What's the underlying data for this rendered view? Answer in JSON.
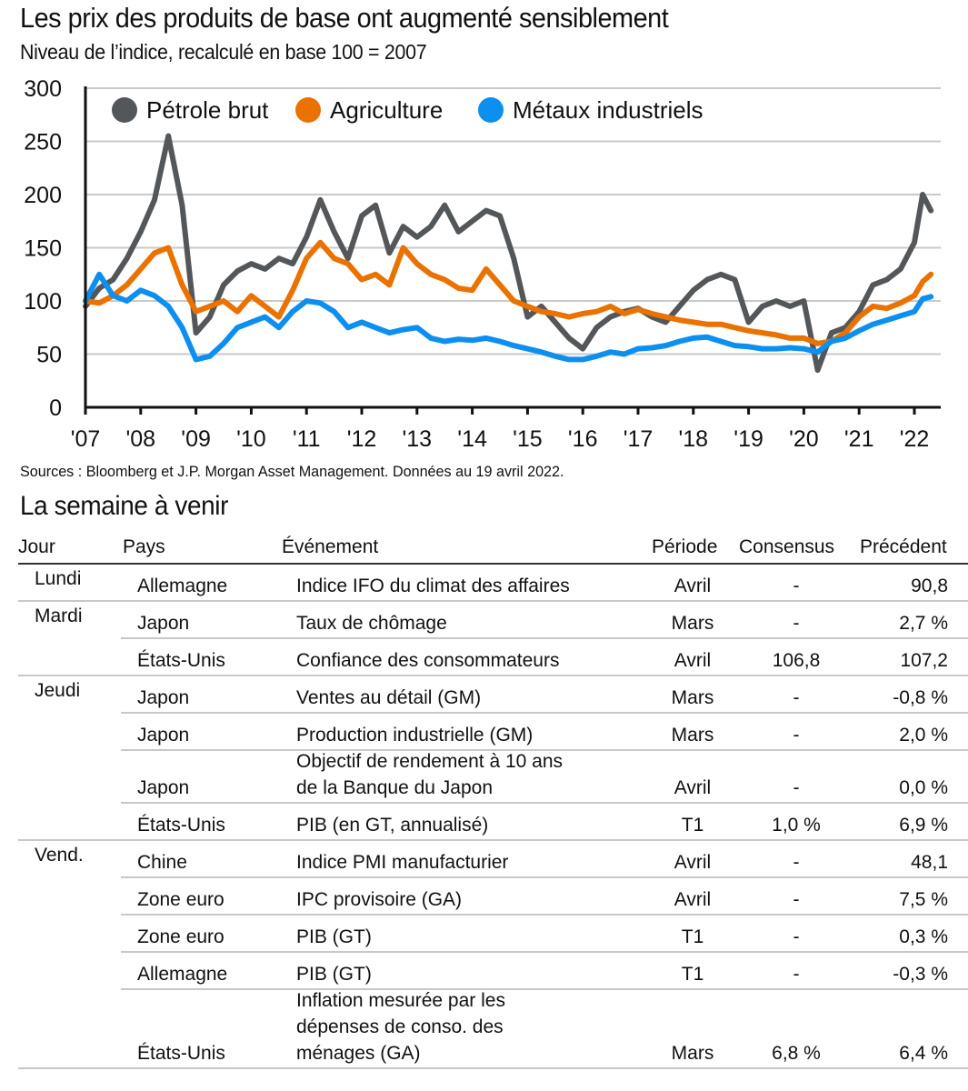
{
  "title": "Les prix des produits de base ont augmenté sensiblement",
  "subtitle": "Niveau de l’indice, recalculé en base 100 = 2007",
  "source": "Sources : Bloomberg et J.P. Morgan Asset Management. Données au 19 avril 2022.",
  "chart_data": {
    "type": "line",
    "title": "Les prix des produits de base ont augmenté sensiblement",
    "subtitle": "Niveau de l’indice, recalculé en base 100 = 2007",
    "xlabel": "",
    "ylabel": "",
    "ylim": [
      0,
      300
    ],
    "yticks": [
      0,
      50,
      100,
      150,
      200,
      250,
      300
    ],
    "ytick_labels": [
      "0",
      "50",
      "100",
      "150",
      "200",
      "250",
      "300"
    ],
    "xlim": [
      2007,
      2022.55
    ],
    "xticks": [
      2007,
      2008,
      2009,
      2010,
      2011,
      2012,
      2013,
      2014,
      2015,
      2016,
      2017,
      2018,
      2019,
      2020,
      2021,
      2022
    ],
    "xtick_labels": [
      "'07",
      "'08",
      "'09",
      "'10",
      "'11",
      "'12",
      "'13",
      "'14",
      "'15",
      "'16",
      "'17",
      "'18",
      "'19",
      "'20",
      "'21",
      "'22"
    ],
    "grid": true,
    "legend_position": "top-left",
    "x": [
      2007.0,
      2007.25,
      2007.5,
      2007.75,
      2008.0,
      2008.25,
      2008.5,
      2008.75,
      2009.0,
      2009.25,
      2009.5,
      2009.75,
      2010.0,
      2010.25,
      2010.5,
      2010.75,
      2011.0,
      2011.25,
      2011.5,
      2011.75,
      2012.0,
      2012.25,
      2012.5,
      2012.75,
      2013.0,
      2013.25,
      2013.5,
      2013.75,
      2014.0,
      2014.25,
      2014.5,
      2014.75,
      2015.0,
      2015.25,
      2015.5,
      2015.75,
      2016.0,
      2016.25,
      2016.5,
      2016.75,
      2017.0,
      2017.25,
      2017.5,
      2017.75,
      2018.0,
      2018.25,
      2018.5,
      2018.75,
      2019.0,
      2019.25,
      2019.5,
      2019.75,
      2020.0,
      2020.25,
      2020.5,
      2020.75,
      2021.0,
      2021.25,
      2021.5,
      2021.75,
      2022.0,
      2022.15,
      2022.3
    ],
    "series": [
      {
        "name": "Pétrole brut",
        "color": "#54575a",
        "values": [
          95,
          112,
          120,
          140,
          165,
          195,
          255,
          190,
          70,
          85,
          115,
          128,
          135,
          130,
          140,
          135,
          160,
          195,
          165,
          140,
          180,
          190,
          145,
          170,
          160,
          170,
          190,
          165,
          175,
          185,
          180,
          140,
          85,
          95,
          80,
          65,
          55,
          75,
          85,
          90,
          93,
          85,
          80,
          95,
          110,
          120,
          125,
          120,
          80,
          95,
          100,
          95,
          100,
          35,
          70,
          75,
          90,
          115,
          120,
          130,
          155,
          200,
          185
        ]
      },
      {
        "name": "Agriculture",
        "color": "#ea7200",
        "values": [
          100,
          98,
          105,
          115,
          130,
          145,
          150,
          115,
          90,
          95,
          100,
          90,
          105,
          95,
          85,
          110,
          140,
          155,
          140,
          135,
          120,
          125,
          115,
          150,
          135,
          125,
          120,
          112,
          110,
          130,
          115,
          100,
          95,
          90,
          88,
          85,
          88,
          90,
          95,
          88,
          92,
          88,
          85,
          82,
          80,
          78,
          78,
          75,
          72,
          70,
          68,
          65,
          65,
          60,
          62,
          70,
          85,
          95,
          93,
          98,
          105,
          118,
          125
        ]
      },
      {
        "name": "Métaux industriels",
        "color": "#0d8ff0",
        "values": [
          100,
          125,
          105,
          100,
          110,
          105,
          95,
          75,
          45,
          48,
          60,
          75,
          80,
          85,
          75,
          90,
          100,
          98,
          90,
          75,
          80,
          75,
          70,
          73,
          75,
          65,
          62,
          64,
          63,
          65,
          62,
          58,
          55,
          52,
          48,
          45,
          45,
          48,
          52,
          50,
          55,
          56,
          58,
          62,
          65,
          66,
          62,
          58,
          57,
          55,
          55,
          56,
          55,
          52,
          62,
          65,
          72,
          78,
          82,
          86,
          90,
          102,
          104
        ]
      }
    ]
  },
  "calendar": {
    "title": "La semaine à venir",
    "headers": {
      "day": "Jour",
      "country": "Pays",
      "event": "Événement",
      "period": "Période",
      "consensus": "Consensus",
      "previous": "Précédent"
    },
    "rows": [
      {
        "day": "Lundi",
        "country": "Allemagne",
        "event": "Indice IFO du climat des affaires",
        "period": "Avril",
        "consensus": "-",
        "previous": "90,8"
      },
      {
        "day": "Mardi",
        "country": "Japon",
        "event": "Taux de chômage",
        "period": "Mars",
        "consensus": "-",
        "previous": "2,7 %"
      },
      {
        "day": "",
        "country": "États-Unis",
        "event": "Confiance des consommateurs",
        "period": "Avril",
        "consensus": "106,8",
        "previous": "107,2"
      },
      {
        "day": "Jeudi",
        "country": "Japon",
        "event": "Ventes au détail (GM)",
        "period": "Mars",
        "consensus": "-",
        "previous": "-0,8 %"
      },
      {
        "day": "",
        "country": "Japon",
        "event": "Production industrielle (GM)",
        "period": "Mars",
        "consensus": "-",
        "previous": "2,0 %"
      },
      {
        "day": "",
        "country": "Japon",
        "event_lines": [
          "Objectif de rendement à 10 ans",
          "de la Banque du Japon"
        ],
        "period": "Avril",
        "consensus": "-",
        "previous": "0,0 %"
      },
      {
        "day": "",
        "country": "États-Unis",
        "event": "PIB (en GT, annualisé)",
        "period": "T1",
        "consensus": "1,0 %",
        "previous": "6,9 %"
      },
      {
        "day": "Vend.",
        "country": "Chine",
        "event": "Indice PMI manufacturier",
        "period": "Avril",
        "consensus": "-",
        "previous": "48,1"
      },
      {
        "day": "",
        "country": "Zone euro",
        "event": "IPC provisoire (GA)",
        "period": "Avril",
        "consensus": "-",
        "previous": "7,5 %"
      },
      {
        "day": "",
        "country": "Zone euro",
        "event": "PIB (GT)",
        "period": "T1",
        "consensus": "-",
        "previous": "0,3 %"
      },
      {
        "day": "",
        "country": "Allemagne",
        "event": "PIB (GT)",
        "period": "T1",
        "consensus": "-",
        "previous": "-0,3 %"
      },
      {
        "day": "",
        "country": "États-Unis",
        "event_lines": [
          "Inflation mesurée par les",
          "dépenses de conso. des",
          "ménages (GA)"
        ],
        "period": "Mars",
        "consensus": "6,8 %",
        "previous": "6,4 %"
      }
    ]
  }
}
